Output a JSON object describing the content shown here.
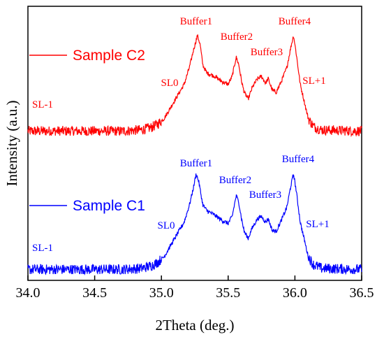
{
  "chart_data": {
    "type": "line",
    "xlabel": "2Theta (deg.)",
    "ylabel": "Intensity (a.u.)",
    "xlim": [
      34.0,
      36.5
    ],
    "x_ticks": [
      "34.0",
      "34.5",
      "35.0",
      "35.5",
      "36.0",
      "36.5"
    ],
    "y_ticks": [],
    "grid": false,
    "legend_position": "left, beside each curve",
    "series": [
      {
        "name": "Sample C2",
        "color": "#ff0000",
        "offset": 1,
        "points": [
          [
            34.0,
            0.04
          ],
          [
            34.7,
            0.04
          ],
          [
            34.85,
            0.05
          ],
          [
            34.92,
            0.07
          ],
          [
            34.97,
            0.1
          ],
          [
            35.02,
            0.15
          ],
          [
            35.07,
            0.25
          ],
          [
            35.12,
            0.35
          ],
          [
            35.17,
            0.45
          ],
          [
            35.21,
            0.6
          ],
          [
            35.24,
            0.75
          ],
          [
            35.27,
            0.88
          ],
          [
            35.29,
            0.8
          ],
          [
            35.31,
            0.62
          ],
          [
            35.34,
            0.55
          ],
          [
            35.4,
            0.52
          ],
          [
            35.46,
            0.47
          ],
          [
            35.5,
            0.45
          ],
          [
            35.53,
            0.52
          ],
          [
            35.56,
            0.69
          ],
          [
            35.58,
            0.62
          ],
          [
            35.6,
            0.48
          ],
          [
            35.62,
            0.38
          ],
          [
            35.65,
            0.32
          ],
          [
            35.68,
            0.42
          ],
          [
            35.72,
            0.5
          ],
          [
            35.75,
            0.52
          ],
          [
            35.78,
            0.46
          ],
          [
            35.8,
            0.5
          ],
          [
            35.83,
            0.4
          ],
          [
            35.86,
            0.38
          ],
          [
            35.9,
            0.48
          ],
          [
            35.94,
            0.6
          ],
          [
            35.97,
            0.78
          ],
          [
            35.99,
            0.88
          ],
          [
            36.01,
            0.72
          ],
          [
            36.04,
            0.45
          ],
          [
            36.07,
            0.3
          ],
          [
            36.1,
            0.15
          ],
          [
            36.14,
            0.08
          ],
          [
            36.2,
            0.05
          ],
          [
            36.5,
            0.04
          ]
        ]
      },
      {
        "name": "Sample C1",
        "color": "#0000ff",
        "offset": 0,
        "points": [
          [
            34.0,
            0.04
          ],
          [
            34.7,
            0.04
          ],
          [
            34.85,
            0.05
          ],
          [
            34.92,
            0.07
          ],
          [
            34.97,
            0.1
          ],
          [
            35.02,
            0.15
          ],
          [
            35.07,
            0.25
          ],
          [
            35.12,
            0.35
          ],
          [
            35.17,
            0.45
          ],
          [
            35.21,
            0.6
          ],
          [
            35.24,
            0.75
          ],
          [
            35.26,
            0.87
          ],
          [
            35.28,
            0.8
          ],
          [
            35.31,
            0.6
          ],
          [
            35.34,
            0.55
          ],
          [
            35.4,
            0.51
          ],
          [
            35.46,
            0.46
          ],
          [
            35.5,
            0.44
          ],
          [
            35.53,
            0.5
          ],
          [
            35.56,
            0.68
          ],
          [
            35.58,
            0.62
          ],
          [
            35.6,
            0.48
          ],
          [
            35.62,
            0.37
          ],
          [
            35.65,
            0.31
          ],
          [
            35.68,
            0.4
          ],
          [
            35.72,
            0.48
          ],
          [
            35.75,
            0.5
          ],
          [
            35.78,
            0.45
          ],
          [
            35.8,
            0.48
          ],
          [
            35.83,
            0.38
          ],
          [
            35.86,
            0.37
          ],
          [
            35.9,
            0.47
          ],
          [
            35.94,
            0.58
          ],
          [
            35.97,
            0.77
          ],
          [
            35.99,
            0.87
          ],
          [
            36.01,
            0.72
          ],
          [
            36.04,
            0.45
          ],
          [
            36.07,
            0.3
          ],
          [
            36.1,
            0.15
          ],
          [
            36.14,
            0.08
          ],
          [
            36.2,
            0.05
          ],
          [
            36.5,
            0.04
          ]
        ]
      }
    ],
    "annotations": [
      {
        "text": "Buffer1",
        "x": 35.27,
        "series": "Sample C2"
      },
      {
        "text": "Buffer2",
        "x": 35.56,
        "series": "Sample C2"
      },
      {
        "text": "Buffer3",
        "x": 35.77,
        "series": "Sample C2"
      },
      {
        "text": "Buffer4",
        "x": 35.99,
        "series": "Sample C2"
      },
      {
        "text": "SL0",
        "x": 35.12,
        "series": "Sample C2"
      },
      {
        "text": "SL+1",
        "x": 36.13,
        "series": "Sample C2"
      },
      {
        "text": "SL-1",
        "x": 34.1,
        "series": "Sample C2"
      },
      {
        "text": "Buffer1",
        "x": 35.26,
        "series": "Sample C1"
      },
      {
        "text": "Buffer2",
        "x": 35.56,
        "series": "Sample C1"
      },
      {
        "text": "Buffer3",
        "x": 35.77,
        "series": "Sample C1"
      },
      {
        "text": "Buffer4",
        "x": 35.99,
        "series": "Sample C1"
      },
      {
        "text": "SL0",
        "x": 35.07,
        "series": "Sample C1"
      },
      {
        "text": "SL+1",
        "x": 36.13,
        "series": "Sample C1"
      },
      {
        "text": "SL-1",
        "x": 34.1,
        "series": "Sample C1"
      }
    ]
  }
}
